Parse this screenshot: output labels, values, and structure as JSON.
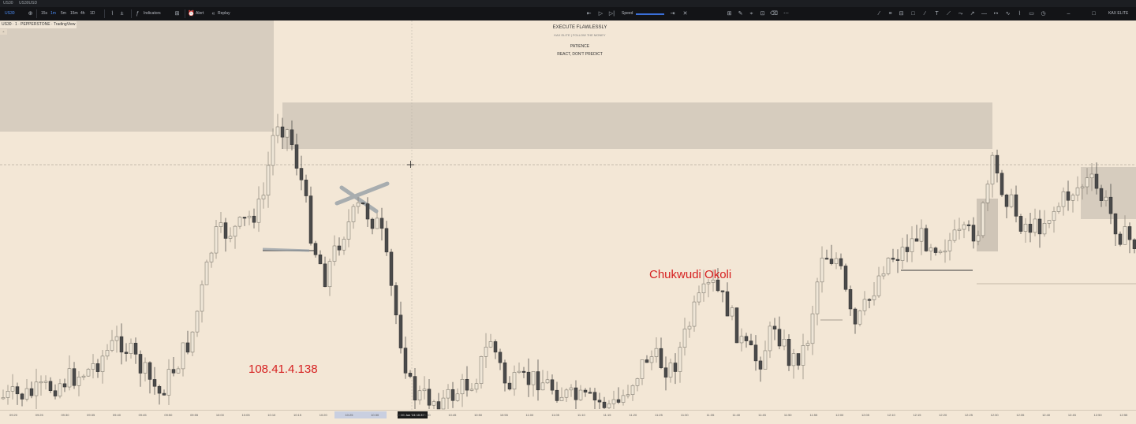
{
  "topbar": {
    "tabs": [
      "US30",
      "US30USD",
      "",
      "",
      ""
    ]
  },
  "toolbar": {
    "symbol": "US30",
    "intervals": [
      "15s",
      "1m",
      "5m",
      "15m",
      "4h",
      "1D"
    ],
    "active_interval": "1m",
    "indicators_label": "Indicators",
    "alert_label": "Alert",
    "replay_label": "Replay",
    "speed_label": "Speed",
    "account_label": "KAX ELITE"
  },
  "chart": {
    "symbol_line": "US30 · 1 · PEPPERSTONE · TradingView",
    "watermark": {
      "line1": "EXECUTE FLAWLESSLY",
      "line2": "KAX ELITE | FOLLOW THE MONEY",
      "line3": "PATIENCE",
      "line4": "REACT, DON'T PREDICT"
    },
    "overlay_ip": "108.41.4.138",
    "overlay_name": "Chukwudi Okoli",
    "colors": {
      "background": "#f3e7d6",
      "zone": "#d5c9b8",
      "bull": "#efe6d7",
      "bear": "#4a4a4a",
      "overlay_text": "#d62020"
    }
  },
  "time_axis": {
    "ticks": [
      "09:20",
      "09:25",
      "09:30",
      "09:35",
      "09:40",
      "09:45",
      "09:50",
      "09:55",
      "10:00",
      "10:05",
      "10:10",
      "10:15",
      "10:20",
      "10:25",
      "10:30",
      "10:35",
      "10:40",
      "10:45",
      "10:50",
      "10:55",
      "11:00",
      "11:05",
      "11:10",
      "11:15",
      "11:20",
      "11:25",
      "11:30",
      "11:35",
      "11:40",
      "11:45",
      "11:50",
      "11:55",
      "12:00",
      "12:05",
      "12:10",
      "12:15",
      "12:20",
      "12:25",
      "12:30",
      "12:35",
      "12:40",
      "12:45",
      "12:50",
      "12:55"
    ],
    "highlight_range": "10:25",
    "cursor_label": "06 Jun '24  10:37"
  }
}
